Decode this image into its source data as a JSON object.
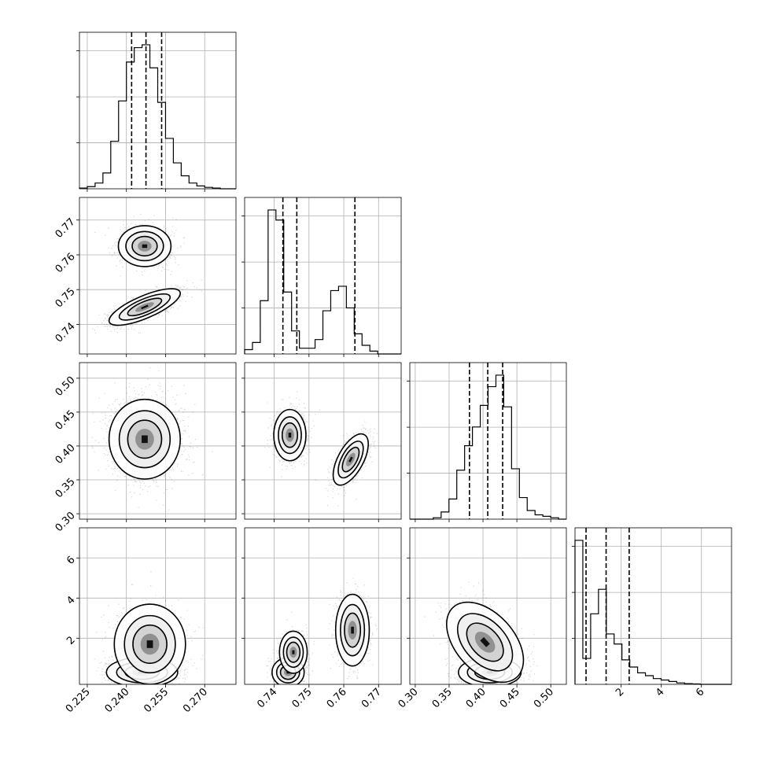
{
  "chart_data": {
    "type": "corner",
    "grid": true,
    "parameters": [
      {
        "range": [
          0.222,
          0.282
        ],
        "ticks": [
          0.225,
          0.24,
          0.255,
          0.27
        ],
        "tick_labels": [
          "0.225",
          "0.240",
          "0.255",
          "0.270"
        ],
        "quantiles": [
          0.242,
          0.2475,
          0.2535
        ],
        "hist_counts": [
          0.5,
          1.5,
          4,
          11,
          33,
          61,
          88,
          98,
          100,
          84,
          60,
          35,
          18,
          9,
          4,
          2,
          1,
          0.5,
          0,
          0
        ]
      },
      {
        "range": [
          0.7315,
          0.7765
        ],
        "ticks": [
          0.74,
          0.75,
          0.76,
          0.77
        ],
        "tick_labels": [
          "0.74",
          "0.75",
          "0.76",
          "0.77"
        ],
        "quantiles": [
          0.7425,
          0.7465,
          0.7632
        ],
        "hist_counts": [
          3,
          8,
          37,
          100,
          93,
          43,
          16,
          4,
          4,
          10,
          30,
          44,
          47,
          32,
          14,
          6,
          2,
          0,
          0,
          0
        ]
      },
      {
        "range": [
          0.292,
          0.523
        ],
        "ticks": [
          0.3,
          0.35,
          0.4,
          0.45,
          0.5
        ],
        "tick_labels": [
          "0.30",
          "0.35",
          "0.40",
          "0.45",
          "0.50"
        ],
        "quantiles": [
          0.38,
          0.407,
          0.429
        ],
        "hist_counts": [
          0,
          0,
          0,
          1,
          5,
          14,
          34,
          51,
          64,
          79,
          92,
          100,
          78,
          35,
          15,
          6,
          3,
          2,
          1,
          0
        ]
      },
      {
        "range": [
          -0.3,
          7.5
        ],
        "ticks": [
          2,
          4,
          6
        ],
        "tick_labels": [
          "2",
          "4",
          "6"
        ],
        "quantiles": [
          0.25,
          1.25,
          2.4
        ],
        "hist_counts": [
          100,
          18,
          49,
          66,
          35,
          28,
          17,
          12,
          8,
          6,
          4,
          3,
          2,
          1,
          0.5,
          0.3,
          0,
          0,
          0,
          0
        ]
      }
    ],
    "panels_2d": [
      {
        "x": 0,
        "y": 1,
        "blobs": [
          {
            "cx": 0.247,
            "cy": 0.7625,
            "sx": 0.0048,
            "sy": 0.0028,
            "rho": 0,
            "w": 0.45
          },
          {
            "cx": 0.247,
            "cy": 0.745,
            "sx": 0.0065,
            "sy": 0.0025,
            "rho": 0.75,
            "w": 0.55
          }
        ]
      },
      {
        "x": 0,
        "y": 2,
        "blobs": [
          {
            "cx": 0.247,
            "cy": 0.41,
            "sx": 0.0065,
            "sy": 0.028,
            "rho": 0,
            "w": 1
          }
        ]
      },
      {
        "x": 1,
        "y": 2,
        "blobs": [
          {
            "cx": 0.7445,
            "cy": 0.416,
            "sx": 0.0022,
            "sy": 0.018,
            "rho": 0,
            "w": 0.55
          },
          {
            "cx": 0.762,
            "cy": 0.38,
            "sx": 0.0024,
            "sy": 0.018,
            "rho": 0.6,
            "w": 0.45
          }
        ]
      },
      {
        "x": 0,
        "y": 3,
        "blobs": [
          {
            "cx": 0.246,
            "cy": 0.3,
            "sx": 0.0065,
            "sy": 0.35,
            "rho": 0,
            "w": 0.55
          },
          {
            "cx": 0.249,
            "cy": 1.7,
            "sx": 0.0065,
            "sy": 0.95,
            "rho": 0,
            "w": 0.45
          }
        ]
      },
      {
        "x": 1,
        "y": 3,
        "blobs": [
          {
            "cx": 0.744,
            "cy": 0.3,
            "sx": 0.0022,
            "sy": 0.35,
            "rho": 0,
            "w": 0.35
          },
          {
            "cx": 0.7455,
            "cy": 1.3,
            "sx": 0.0019,
            "sy": 0.5,
            "rho": 0,
            "w": 0.2
          },
          {
            "cx": 0.7625,
            "cy": 2.4,
            "sx": 0.0023,
            "sy": 0.85,
            "rho": 0,
            "w": 0.45
          }
        ]
      },
      {
        "x": 2,
        "y": 3,
        "blobs": [
          {
            "cx": 0.41,
            "cy": 0.3,
            "sx": 0.022,
            "sy": 0.35,
            "rho": 0,
            "w": 0.55
          },
          {
            "cx": 0.403,
            "cy": 1.8,
            "sx": 0.027,
            "sy": 0.95,
            "rho": -0.45,
            "w": 0.45
          }
        ]
      }
    ]
  }
}
